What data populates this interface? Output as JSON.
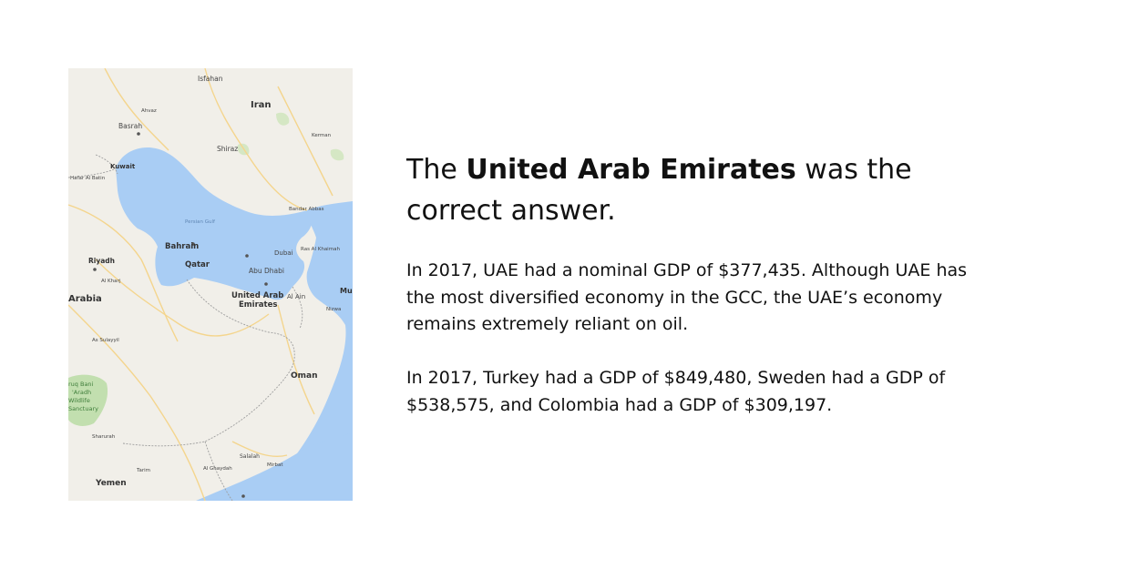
{
  "map": {
    "icon": "map-image",
    "colors": {
      "land": "#f1efe9",
      "water": "#a9cdf4",
      "park": "#b7dba0",
      "road": "#f4d58d",
      "border": "#9e9e9e"
    },
    "labels": {
      "isfahan": "Isfahan",
      "iran": "Iran",
      "ahvaz": "Ahvaz",
      "basrah": "Basrah",
      "shiraz": "Shiraz",
      "kerman": "Kerman",
      "kuwait": "Kuwait",
      "hafar": "Hafar Al Batin",
      "persian_gulf": "Persian Gulf",
      "bandar_abbas": "Bandar Abbas",
      "bahrain": "Bahrain",
      "dubai": "Dubai",
      "ras_al_khaimah": "Ras Al Khaimah",
      "riyadh": "Riyadh",
      "qatar": "Qatar",
      "abu_dhabi": "Abu Dhabi",
      "al_kharj": "Al Kharj",
      "arabia": "Arabia",
      "uae_line1": "United Arab",
      "uae_line2": "Emirates",
      "al_ain": "Al Ain",
      "muscat": "Mus",
      "nizwa": "Nizwa",
      "as_sulayyil": "As Sulayyil",
      "oman": "Oman",
      "uruq_line1": "ruq Bani",
      "uruq_line2": "'Aradh",
      "uruq_line3": "Wildlife",
      "uruq_line4": "Sanctuary",
      "sharurah": "Sharurah",
      "salalah": "Salalah",
      "mirbat": "Mirbat",
      "tarim": "Tarim",
      "al_ghaydah": "Al Ghaydah",
      "yemen": "Yemen"
    }
  },
  "headline": {
    "prefix": "The ",
    "emphasis": "United Arab Emirates",
    "suffix": " was the correct answer."
  },
  "paragraphs": {
    "p1": "In 2017, UAE had a nominal GDP of $377,435. Although UAE has the most diversified economy in the GCC, the UAE’s economy remains extremely reliant on oil.",
    "p2": "In 2017, Turkey had a GDP of $849,480, Sweden had a GDP of $538,575, and Colombia had a GDP of $309,197."
  }
}
